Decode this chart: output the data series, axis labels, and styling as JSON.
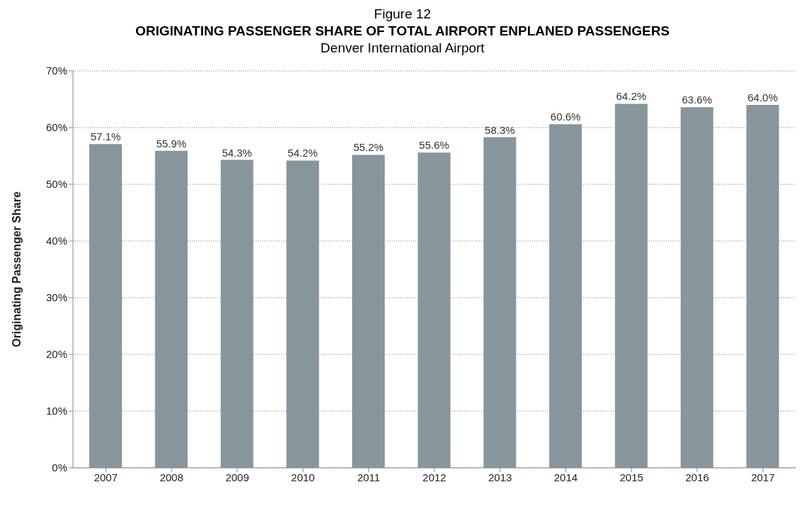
{
  "chart_data": {
    "type": "bar",
    "annotations": [
      "Figure 12"
    ],
    "title": "ORIGINATING PASSENGER SHARE OF TOTAL AIRPORT ENPLANED PASSENGERS",
    "subtitle": "Denver International Airport",
    "ylabel": "Originating Passenger Share",
    "categories": [
      "2007",
      "2008",
      "2009",
      "2010",
      "2011",
      "2012",
      "2013",
      "2014",
      "2015",
      "2016",
      "2017"
    ],
    "values": [
      57.1,
      55.9,
      54.3,
      54.2,
      55.2,
      55.6,
      58.3,
      60.6,
      64.2,
      63.6,
      64.0
    ],
    "value_labels": [
      "57.1%",
      "55.9%",
      "54.3%",
      "54.2%",
      "55.2%",
      "55.6%",
      "58.3%",
      "60.6%",
      "64.2%",
      "63.6%",
      "64.0%"
    ],
    "color": "#87969d",
    "ylim": [
      0,
      70
    ],
    "yticks": [
      {
        "value": 0,
        "label": "0%"
      },
      {
        "value": 10,
        "label": "10%"
      },
      {
        "value": 20,
        "label": "20%"
      },
      {
        "value": 30,
        "label": "30%"
      },
      {
        "value": 40,
        "label": "40%"
      },
      {
        "value": 50,
        "label": "50%"
      },
      {
        "value": 60,
        "label": "60%"
      },
      {
        "value": 70,
        "label": "70%"
      }
    ],
    "grid": "y",
    "line_style": "dotted"
  }
}
